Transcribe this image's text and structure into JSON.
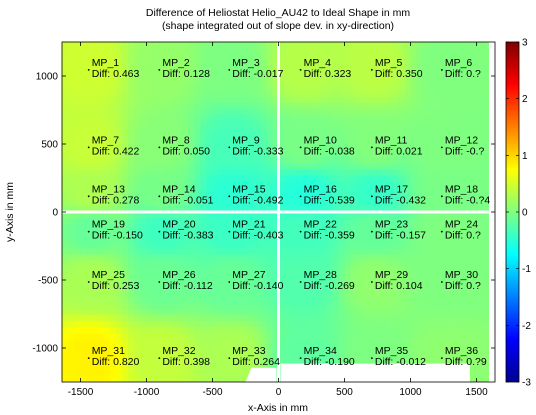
{
  "chart_data": {
    "type": "heatmap",
    "title": "Difference of Heliostat Helio_AU42 to Ideal Shape in mm",
    "subtitle": "(shape integrated out of slope dev. in xy-direction)",
    "xlabel": "x-Axis in mm",
    "ylabel": "y-Axis in mm",
    "xlim": [
      -1640,
      1640
    ],
    "ylim": [
      -1250,
      1250
    ],
    "xticks": [
      -1500,
      -1000,
      -500,
      0,
      500,
      1000,
      1500
    ],
    "yticks": [
      -1000,
      -500,
      0,
      500,
      1000
    ],
    "colorbar": {
      "range": [
        -3,
        3
      ],
      "ticks": [
        -3,
        -2,
        -1,
        0,
        1,
        2,
        3
      ],
      "colormap": "jet"
    },
    "diff_prefix": "Diff: ",
    "points": [
      {
        "name": "MP_1",
        "x": -1415,
        "y": 1060,
        "diff": "0.463"
      },
      {
        "name": "MP_2",
        "x": -880,
        "y": 1060,
        "diff": "0.128"
      },
      {
        "name": "MP_3",
        "x": -350,
        "y": 1060,
        "diff": "-0.017"
      },
      {
        "name": "MP_4",
        "x": 190,
        "y": 1060,
        "diff": "0.323"
      },
      {
        "name": "MP_5",
        "x": 730,
        "y": 1060,
        "diff": "0.350"
      },
      {
        "name": "MP_6",
        "x": 1260,
        "y": 1060,
        "diff": "0.?"
      },
      {
        "name": "MP_7",
        "x": -1415,
        "y": 490,
        "diff": "0.422"
      },
      {
        "name": "MP_8",
        "x": -880,
        "y": 490,
        "diff": "0.050"
      },
      {
        "name": "MP_9",
        "x": -350,
        "y": 490,
        "diff": "-0.333"
      },
      {
        "name": "MP_10",
        "x": 190,
        "y": 490,
        "diff": "-0.038"
      },
      {
        "name": "MP_11",
        "x": 730,
        "y": 490,
        "diff": "0.021"
      },
      {
        "name": "MP_12",
        "x": 1260,
        "y": 490,
        "diff": "-0.?"
      },
      {
        "name": "MP_13",
        "x": -1415,
        "y": 130,
        "diff": "0.278"
      },
      {
        "name": "MP_14",
        "x": -880,
        "y": 130,
        "diff": "-0.051"
      },
      {
        "name": "MP_15",
        "x": -350,
        "y": 130,
        "diff": "-0.492"
      },
      {
        "name": "MP_16",
        "x": 190,
        "y": 130,
        "diff": "-0.539"
      },
      {
        "name": "MP_17",
        "x": 730,
        "y": 130,
        "diff": "-0.432"
      },
      {
        "name": "MP_18",
        "x": 1260,
        "y": 130,
        "diff": "-0.?4"
      },
      {
        "name": "MP_19",
        "x": -1415,
        "y": -130,
        "diff": "-0.150"
      },
      {
        "name": "MP_20",
        "x": -880,
        "y": -130,
        "diff": "-0.383"
      },
      {
        "name": "MP_21",
        "x": -350,
        "y": -130,
        "diff": "-0.403"
      },
      {
        "name": "MP_22",
        "x": 190,
        "y": -130,
        "diff": "-0.359"
      },
      {
        "name": "MP_23",
        "x": 730,
        "y": -130,
        "diff": "-0.157"
      },
      {
        "name": "MP_24",
        "x": 1260,
        "y": -130,
        "diff": "0.?"
      },
      {
        "name": "MP_25",
        "x": -1415,
        "y": -500,
        "diff": "0.253"
      },
      {
        "name": "MP_26",
        "x": -880,
        "y": -500,
        "diff": "-0.112"
      },
      {
        "name": "MP_27",
        "x": -350,
        "y": -500,
        "diff": "-0.140"
      },
      {
        "name": "MP_28",
        "x": 190,
        "y": -500,
        "diff": "-0.269"
      },
      {
        "name": "MP_29",
        "x": 730,
        "y": -500,
        "diff": "0.104"
      },
      {
        "name": "MP_30",
        "x": 1260,
        "y": -500,
        "diff": "0.?"
      },
      {
        "name": "MP_31",
        "x": -1415,
        "y": -1060,
        "diff": "0.820"
      },
      {
        "name": "MP_32",
        "x": -880,
        "y": -1060,
        "diff": "0.398"
      },
      {
        "name": "MP_33",
        "x": -350,
        "y": -1060,
        "diff": "0.264"
      },
      {
        "name": "MP_34",
        "x": 190,
        "y": -1060,
        "diff": "-0.190"
      },
      {
        "name": "MP_35",
        "x": 730,
        "y": -1060,
        "diff": "-0.012"
      },
      {
        "name": "MP_36",
        "x": 1260,
        "y": -1060,
        "diff": "0.?9"
      }
    ]
  }
}
